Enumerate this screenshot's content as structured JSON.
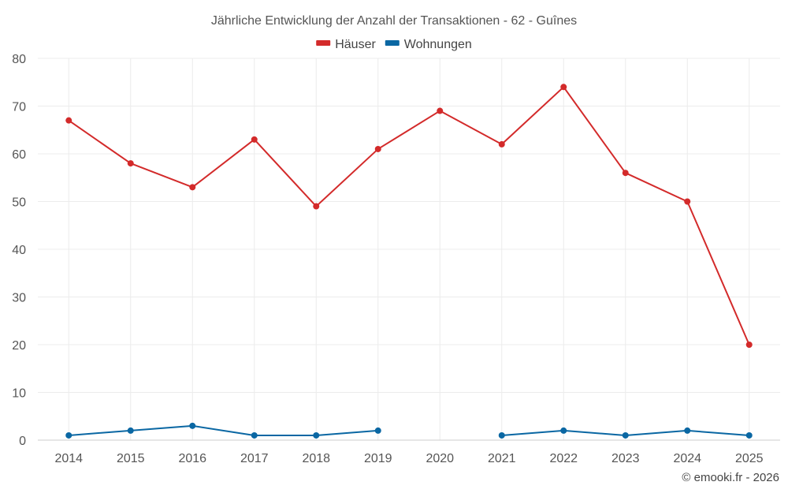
{
  "chart_data": {
    "type": "line",
    "title": "Jährliche Entwicklung der Anzahl der Transaktionen - 62 - Guînes",
    "categories": [
      "2014",
      "2015",
      "2016",
      "2017",
      "2018",
      "2019",
      "2020",
      "2021",
      "2022",
      "2023",
      "2024",
      "2025"
    ],
    "series": [
      {
        "name": "Häuser",
        "color": "#d32a2a",
        "values": [
          67,
          58,
          53,
          63,
          49,
          61,
          69,
          62,
          74,
          56,
          50,
          20
        ]
      },
      {
        "name": "Wohnungen",
        "color": "#0a67a3",
        "values": [
          1,
          2,
          3,
          1,
          1,
          2,
          null,
          1,
          2,
          1,
          2,
          1
        ]
      }
    ],
    "ylim": [
      0,
      80
    ],
    "yticks": [
      0,
      10,
      20,
      30,
      40,
      50,
      60,
      70,
      80
    ],
    "grid": true,
    "legend": "top-center",
    "xlabel": "",
    "ylabel": ""
  },
  "credit": "© emooki.fr - 2026"
}
